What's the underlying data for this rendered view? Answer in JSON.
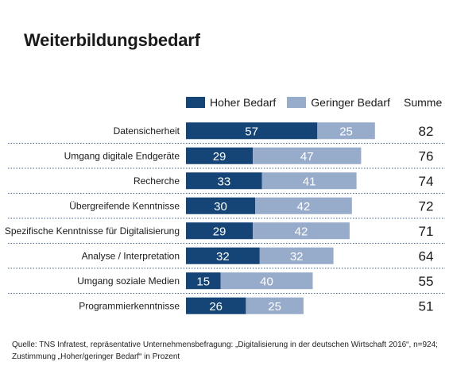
{
  "title": "Weiterbildungsbedarf",
  "legend": {
    "high": "Hoher Bedarf",
    "low": "Geringer Bedarf",
    "sum": "Summe"
  },
  "colors": {
    "high": "#154577",
    "low": "#97abcb",
    "separator": "#3a5f8f"
  },
  "chart_data": {
    "type": "bar",
    "orientation": "horizontal",
    "stacked": true,
    "categories": [
      "Datensicherheit",
      "Umgang digitale Endgeräte",
      "Recherche",
      "Übergreifende Kenntnisse",
      "Spezifische Kenntnisse für Digitalisierung",
      "Analyse / Interpretation",
      "Umgang soziale Medien",
      "Programmierkenntnisse"
    ],
    "series": [
      {
        "name": "Hoher Bedarf",
        "values": [
          57,
          29,
          33,
          30,
          29,
          32,
          15,
          26
        ]
      },
      {
        "name": "Geringer Bedarf",
        "values": [
          25,
          47,
          41,
          42,
          42,
          32,
          40,
          25
        ]
      }
    ],
    "sums": [
      82,
      76,
      74,
      72,
      71,
      64,
      55,
      51
    ],
    "sum_label": "Summe",
    "title": "Weiterbildungsbedarf",
    "legend_position": "top"
  },
  "source": {
    "line1": "Quelle: TNS Infratest, repräsentative  Unternehmensbefragung: „Digitalisierung in der deutschen Wirtschaft 2016“, n=924;",
    "line2": "Zustimmung  „Hoher/geringer Bedarf“ in Prozent"
  }
}
